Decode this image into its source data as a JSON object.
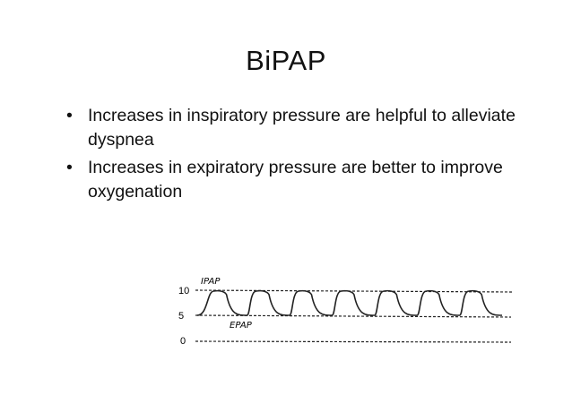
{
  "slide": {
    "title": "BiPAP",
    "bullets": [
      "Increases in inspiratory pressure are helpful to alleviate dyspnea",
      "Increases in expiratory pressure are better to improve oxygenation"
    ],
    "bullet_symbol": "•"
  },
  "diagram": {
    "level_labels": [
      "10",
      "5",
      "0"
    ],
    "ipap_label": "IPAP",
    "epap_label": "EPAP",
    "breath_count": 7,
    "line_color": "#222222"
  }
}
